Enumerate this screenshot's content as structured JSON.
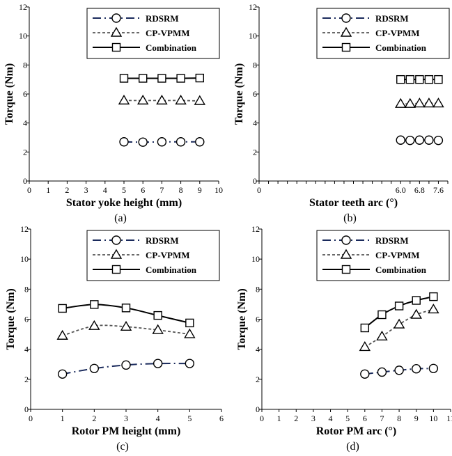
{
  "chart_data": [
    {
      "type": "line",
      "caption": "(a)",
      "xlabel": "Stator yoke height (mm)",
      "ylabel": "Torque (Nm)",
      "xlim": [
        0,
        10
      ],
      "ylim": [
        0,
        12
      ],
      "xticks": [
        "0",
        "1",
        "2",
        "3",
        "4",
        "5",
        "6",
        "7",
        "8",
        "9",
        "10"
      ],
      "yticks": [
        "0",
        "2",
        "4",
        "6",
        "8",
        "10",
        "12"
      ],
      "legend": [
        "RDSRM",
        "CP-VPMM",
        "Combination"
      ],
      "series": [
        {
          "name": "RDSRM",
          "x": [
            5,
            6,
            7,
            8,
            9
          ],
          "y": [
            2.7,
            2.68,
            2.7,
            2.7,
            2.7
          ]
        },
        {
          "name": "CP-VPMM",
          "x": [
            5,
            6,
            7,
            8,
            9
          ],
          "y": [
            5.55,
            5.55,
            5.55,
            5.55,
            5.52
          ]
        },
        {
          "name": "Combination",
          "x": [
            5,
            6,
            7,
            8,
            9
          ],
          "y": [
            7.08,
            7.08,
            7.08,
            7.08,
            7.1
          ]
        }
      ]
    },
    {
      "type": "line",
      "caption": "(b)",
      "xlabel": "Stator teeth arc (°)",
      "ylabel": "Torque (Nm)",
      "xlim": [
        0,
        8
      ],
      "ylim": [
        0,
        12
      ],
      "xticks": [
        "0",
        "0.4",
        "0.8",
        "1.2",
        "1.6",
        "2.0",
        "2.4",
        "2.8",
        "3.2",
        "3.6",
        "4.0",
        "4.4",
        "4.8",
        "5.2",
        "5.6",
        "6.0",
        "6.4",
        "6.8",
        "7.2",
        "7.6",
        "8.0"
      ],
      "yticks": [
        "0",
        "2",
        "4",
        "6",
        "8",
        "10",
        "12"
      ],
      "legend": [
        "RDSRM",
        "CP-VPMM",
        "Combination"
      ],
      "series": [
        {
          "name": "RDSRM",
          "x": [
            6.0,
            6.4,
            6.8,
            7.2,
            7.6
          ],
          "y": [
            2.82,
            2.8,
            2.82,
            2.82,
            2.8
          ]
        },
        {
          "name": "CP-VPMM",
          "x": [
            6.0,
            6.4,
            6.8,
            7.2,
            7.6
          ],
          "y": [
            5.32,
            5.32,
            5.35,
            5.35,
            5.35
          ]
        },
        {
          "name": "Combination",
          "x": [
            6.0,
            6.4,
            6.8,
            7.2,
            7.6
          ],
          "y": [
            7.0,
            7.0,
            7.0,
            7.0,
            7.0
          ]
        }
      ]
    },
    {
      "type": "line",
      "caption": "(c)",
      "xlabel": "Rotor PM height (mm)",
      "ylabel": "Torque (Nm)",
      "xlim": [
        0,
        6
      ],
      "ylim": [
        0,
        12
      ],
      "xticks": [
        "0",
        "1",
        "2",
        "3",
        "4",
        "5",
        "6"
      ],
      "yticks": [
        "0",
        "2",
        "4",
        "6",
        "8",
        "10",
        "12"
      ],
      "legend": [
        "RDSRM",
        "CP-VPMM",
        "Combination"
      ],
      "series": [
        {
          "name": "RDSRM",
          "x": [
            1,
            2,
            3,
            4,
            5
          ],
          "y": [
            2.35,
            2.72,
            2.95,
            3.05,
            3.05
          ]
        },
        {
          "name": "CP-VPMM",
          "x": [
            1,
            2,
            3,
            4,
            5
          ],
          "y": [
            4.9,
            5.55,
            5.5,
            5.28,
            5.0
          ]
        },
        {
          "name": "Combination",
          "x": [
            1,
            2,
            3,
            4,
            5
          ],
          "y": [
            6.72,
            6.98,
            6.75,
            6.25,
            5.75
          ]
        }
      ]
    },
    {
      "type": "line",
      "caption": "(d)",
      "xlabel": "Rotor PM arc (°)",
      "ylabel": "Torque (Nm)",
      "xlim": [
        0,
        11
      ],
      "ylim": [
        0,
        12
      ],
      "xticks": [
        "0",
        "1",
        "2",
        "3",
        "4",
        "5",
        "6",
        "7",
        "8",
        "9",
        "10",
        "11"
      ],
      "yticks": [
        "0",
        "2",
        "4",
        "6",
        "8",
        "10",
        "12"
      ],
      "legend": [
        "RDSRM",
        "CP-VPMM",
        "Combination"
      ],
      "series": [
        {
          "name": "RDSRM",
          "x": [
            6,
            7,
            8,
            9,
            10
          ],
          "y": [
            2.35,
            2.48,
            2.6,
            2.7,
            2.72
          ]
        },
        {
          "name": "CP-VPMM",
          "x": [
            6,
            7,
            8,
            9,
            10
          ],
          "y": [
            4.15,
            4.85,
            5.65,
            6.3,
            6.65
          ]
        },
        {
          "name": "Combination",
          "x": [
            6,
            7,
            8,
            9,
            10
          ],
          "y": [
            5.42,
            6.3,
            6.88,
            7.25,
            7.5
          ]
        }
      ]
    }
  ]
}
